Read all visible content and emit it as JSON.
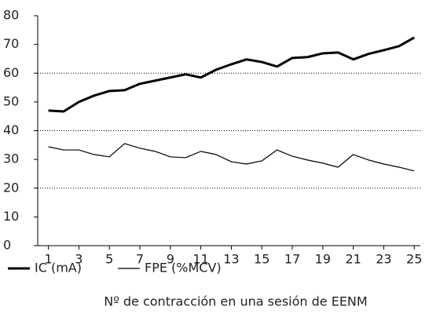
{
  "chart_data": {
    "type": "line",
    "x_label": "Nº de contracción en una sesión de EENM",
    "x": [
      1,
      2,
      3,
      4,
      5,
      6,
      7,
      8,
      9,
      10,
      11,
      12,
      13,
      14,
      15,
      16,
      17,
      18,
      19,
      20,
      21,
      22,
      23,
      24,
      25
    ],
    "xlim": [
      0.3,
      25.4
    ],
    "xticks": [
      1,
      3,
      5,
      7,
      9,
      11,
      13,
      15,
      17,
      19,
      21,
      23,
      25
    ],
    "ylim": [
      0,
      80
    ],
    "yticks": [
      0,
      10,
      20,
      30,
      40,
      50,
      60,
      70,
      80
    ],
    "grid_values": [
      20,
      40,
      60
    ],
    "legend": "bottom-left",
    "series": [
      {
        "name": "IC (mA)",
        "color": "#000000",
        "width": 3,
        "values": [
          47.0,
          46.7,
          50.0,
          52.2,
          53.8,
          54.1,
          56.3,
          57.4,
          58.5,
          59.6,
          58.5,
          61.2,
          63.1,
          64.8,
          63.9,
          62.3,
          65.3,
          65.6,
          66.9,
          67.2,
          64.8,
          66.7,
          68.0,
          69.4,
          72.4
        ]
      },
      {
        "name": "FPE (%MCV)",
        "color": "#000000",
        "width": 1.2,
        "values": [
          34.4,
          33.3,
          33.3,
          31.7,
          30.9,
          35.5,
          33.9,
          32.8,
          30.9,
          30.6,
          32.8,
          31.7,
          29.2,
          28.4,
          29.5,
          33.3,
          31.1,
          29.8,
          28.7,
          27.3,
          31.7,
          29.8,
          28.4,
          27.3,
          26.0
        ]
      }
    ]
  }
}
